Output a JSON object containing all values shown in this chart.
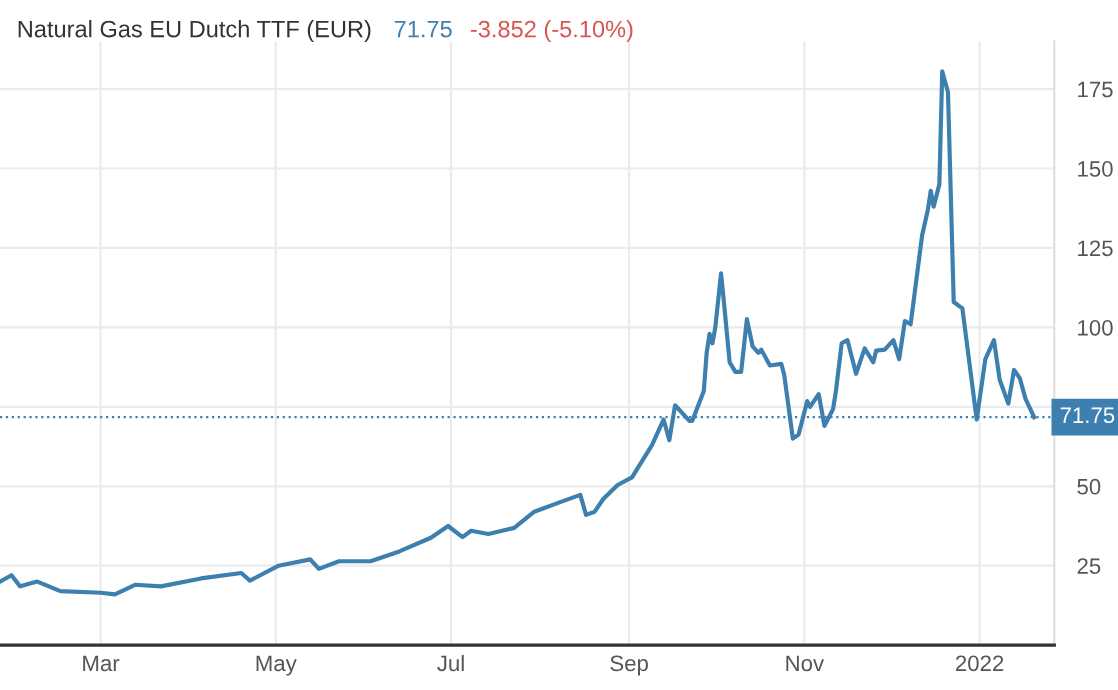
{
  "chart_data": {
    "type": "line",
    "title": "Natural Gas EU Dutch TTF (EUR)",
    "annotations": [
      "71.75",
      "-3.852 (-5.10%)"
    ],
    "x": [
      "2021-01-25",
      "2021-01-29",
      "2021-02-01",
      "2021-02-07",
      "2021-02-15",
      "2021-03-01",
      "2021-03-06",
      "2021-03-13",
      "2021-03-22",
      "2021-04-05",
      "2021-04-19",
      "2021-04-22",
      "2021-05-02",
      "2021-05-13",
      "2021-05-16",
      "2021-05-23",
      "2021-06-03",
      "2021-06-13",
      "2021-06-24",
      "2021-06-30",
      "2021-07-05",
      "2021-07-08",
      "2021-07-14",
      "2021-07-23",
      "2021-07-30",
      "2021-08-08",
      "2021-08-15",
      "2021-08-17",
      "2021-08-20",
      "2021-08-23",
      "2021-08-28",
      "2021-09-02",
      "2021-09-09",
      "2021-09-13",
      "2021-09-15",
      "2021-09-17",
      "2021-09-22",
      "2021-09-23",
      "2021-09-27",
      "2021-09-28",
      "2021-09-29",
      "2021-09-30",
      "2021-10-01",
      "2021-10-03",
      "2021-10-04",
      "2021-10-06",
      "2021-10-08",
      "2021-10-10",
      "2021-10-12",
      "2021-10-14",
      "2021-10-16",
      "2021-10-17",
      "2021-10-20",
      "2021-10-24",
      "2021-10-25",
      "2021-10-28",
      "2021-10-30",
      "2021-11-02",
      "2021-11-03",
      "2021-11-06",
      "2021-11-08",
      "2021-11-11",
      "2021-11-12",
      "2021-11-14",
      "2021-11-16",
      "2021-11-19",
      "2021-11-22",
      "2021-11-25",
      "2021-11-26",
      "2021-11-29",
      "2021-12-02",
      "2021-12-04",
      "2021-12-06",
      "2021-12-08",
      "2021-12-12",
      "2021-12-14",
      "2021-12-15",
      "2021-12-16",
      "2021-12-18",
      "2021-12-19",
      "2021-12-21",
      "2021-12-23",
      "2021-12-26",
      "2021-12-31",
      "2022-01-03",
      "2022-01-06",
      "2022-01-08",
      "2022-01-11",
      "2022-01-13",
      "2022-01-15",
      "2022-01-17",
      "2022-01-20"
    ],
    "series": [
      {
        "color": "#3d7fae",
        "values": [
          20,
          22,
          18.5,
          20,
          17,
          16.5,
          16,
          19,
          18.5,
          21,
          22.7,
          20.3,
          25,
          27,
          24,
          26.4,
          26.4,
          29.5,
          33.8,
          37.5,
          34,
          36,
          35,
          36.9,
          42,
          45,
          47.3,
          41,
          42,
          46,
          50.4,
          52.8,
          63,
          71,
          64.5,
          75.5,
          70.6,
          70.6,
          80,
          92,
          98,
          95,
          100,
          117,
          108,
          89,
          86,
          86,
          102.6,
          94,
          92,
          93,
          88,
          88.5,
          85,
          65,
          66.3,
          76.8,
          75,
          79,
          69,
          74.3,
          80,
          95,
          96,
          85.4,
          93.4,
          89,
          92.7,
          93,
          96,
          90,
          102,
          101,
          129,
          137,
          143,
          138,
          145,
          180.6,
          174,
          108,
          106,
          71,
          90,
          96,
          83.5,
          76,
          86.6,
          84,
          77.5,
          71.75
        ]
      }
    ],
    "xlim": [
      "2021-01-25",
      "2022-01-27"
    ],
    "xticks": [
      {
        "value": "2021-03-01",
        "label": "Mar"
      },
      {
        "value": "2021-05-01",
        "label": "May"
      },
      {
        "value": "2021-07-01",
        "label": "Jul"
      },
      {
        "value": "2021-09-01",
        "label": "Sep"
      },
      {
        "value": "2021-11-01",
        "label": "Nov"
      },
      {
        "value": "2022-01-01",
        "label": "2022"
      }
    ],
    "ylim": [
      0,
      190
    ],
    "yticks": [
      25,
      50,
      {
        "value": 75,
        "label": null
      },
      100,
      125,
      150,
      175
    ],
    "ref_lines": [
      {
        "axis": "y",
        "value": 71.75,
        "label": "71.75",
        "color": "#3d7fae",
        "line_style": "dotted"
      }
    ],
    "grid": true,
    "line_style": "solid",
    "marker": "none"
  }
}
